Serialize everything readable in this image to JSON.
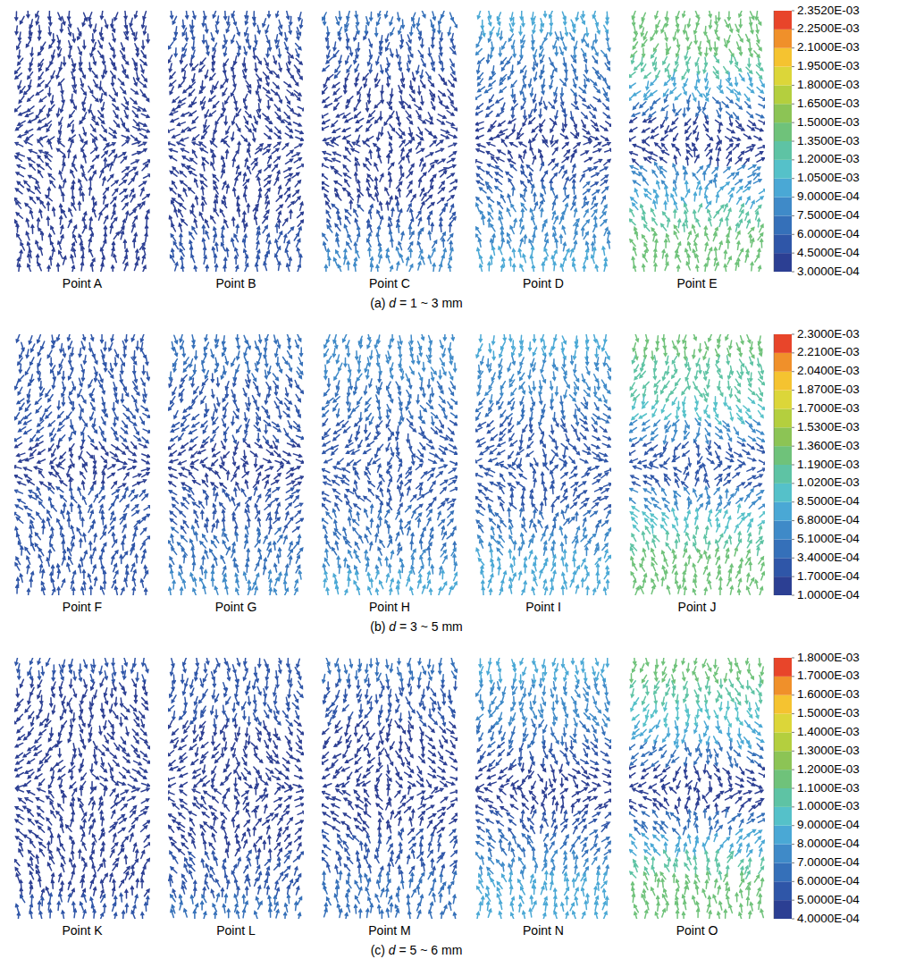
{
  "chart_data": [
    {
      "type": "vector_field",
      "caption": "(a) d = 1 ~ 3 mm",
      "colorbar": {
        "range": [
          0.0003,
          0.002352
        ],
        "ticks": [
          {
            "value": 0.0003,
            "label": "3.0000E-04"
          },
          {
            "value": 0.00045,
            "label": "4.5000E-04"
          },
          {
            "value": 0.0006,
            "label": "6.0000E-04"
          },
          {
            "value": 0.00075,
            "label": "7.5000E-04"
          },
          {
            "value": 0.0009,
            "label": "9.0000E-04"
          },
          {
            "value": 0.00105,
            "label": "1.0500E-03"
          },
          {
            "value": 0.0012,
            "label": "1.2000E-03"
          },
          {
            "value": 0.00135,
            "label": "1.3500E-03"
          },
          {
            "value": 0.0015,
            "label": "1.5000E-03"
          },
          {
            "value": 0.00165,
            "label": "1.6500E-03"
          },
          {
            "value": 0.0018,
            "label": "1.8000E-03"
          },
          {
            "value": 0.00195,
            "label": "1.9500E-03"
          },
          {
            "value": 0.0021,
            "label": "2.1000E-03"
          },
          {
            "value": 0.00225,
            "label": "2.2500E-03"
          },
          {
            "value": 0.002352,
            "label": "2.3520E-03"
          }
        ],
        "colors": [
          "#2c3f93",
          "#2f56a8",
          "#3570b9",
          "#3f8ac8",
          "#4aa8d5",
          "#55c1c9",
          "#5ec3a4",
          "#6fc27a",
          "#8cc455",
          "#b4cf3e",
          "#dcd639",
          "#f5c330",
          "#f0902a",
          "#e8452a"
        ]
      },
      "panels": [
        {
          "label": "Point A",
          "values": [
            0.0004,
            0.00038,
            0.00036,
            0.00034,
            0.00032,
            0.00031,
            0.00031,
            0.00032,
            0.00034,
            0.00036,
            0.00038,
            0.00042
          ]
        },
        {
          "label": "Point B",
          "values": [
            0.0005,
            0.00046,
            0.00042,
            0.00038,
            0.00034,
            0.00032,
            0.00032,
            0.00034,
            0.00038,
            0.00043,
            0.0005,
            0.00058
          ]
        },
        {
          "label": "Point C",
          "values": [
            0.00065,
            0.00058,
            0.0005,
            0.00043,
            0.00036,
            0.00032,
            0.00032,
            0.00036,
            0.00044,
            0.00053,
            0.00064,
            0.00076
          ]
        },
        {
          "label": "Point D",
          "values": [
            0.00095,
            0.00086,
            0.00074,
            0.0006,
            0.00046,
            0.00034,
            0.00034,
            0.00046,
            0.00062,
            0.00076,
            0.00088,
            0.00098
          ]
        },
        {
          "label": "Point E",
          "values": [
            0.00145,
            0.00138,
            0.00122,
            0.001,
            0.00074,
            0.00042,
            0.00042,
            0.00076,
            0.00102,
            0.00124,
            0.0014,
            0.00148
          ]
        }
      ]
    },
    {
      "type": "vector_field",
      "caption": "(b) d = 3 ~ 5 mm",
      "colorbar": {
        "range": [
          0.0001,
          0.0023
        ],
        "ticks": [
          {
            "value": 0.0001,
            "label": "1.0000E-04"
          },
          {
            "value": 0.00017,
            "label": "1.7000E-04"
          },
          {
            "value": 0.00034,
            "label": "3.4000E-04"
          },
          {
            "value": 0.00051,
            "label": "5.1000E-04"
          },
          {
            "value": 0.00068,
            "label": "6.8000E-04"
          },
          {
            "value": 0.00085,
            "label": "8.5000E-04"
          },
          {
            "value": 0.00102,
            "label": "1.0200E-03"
          },
          {
            "value": 0.00119,
            "label": "1.1900E-03"
          },
          {
            "value": 0.00136,
            "label": "1.3600E-03"
          },
          {
            "value": 0.00153,
            "label": "1.5300E-03"
          },
          {
            "value": 0.0017,
            "label": "1.7000E-03"
          },
          {
            "value": 0.00187,
            "label": "1.8700E-03"
          },
          {
            "value": 0.00204,
            "label": "2.0400E-03"
          },
          {
            "value": 0.00221,
            "label": "2.2100E-03"
          },
          {
            "value": 0.0023,
            "label": "2.3000E-03"
          }
        ],
        "colors": [
          "#2c3f93",
          "#2f56a8",
          "#3570b9",
          "#3f8ac8",
          "#4aa8d5",
          "#55c1c9",
          "#5ec3a4",
          "#6fc27a",
          "#8cc455",
          "#b4cf3e",
          "#dcd639",
          "#f5c330",
          "#f0902a",
          "#e8452a"
        ]
      },
      "panels": [
        {
          "label": "Point F",
          "values": [
            0.0003,
            0.00027,
            0.00024,
            0.00021,
            0.00018,
            0.00015,
            0.00015,
            0.00018,
            0.00021,
            0.00024,
            0.00028,
            0.00032
          ]
        },
        {
          "label": "Point G",
          "values": [
            0.00038,
            0.00034,
            0.0003,
            0.00026,
            0.00021,
            0.00016,
            0.00016,
            0.00021,
            0.00027,
            0.00034,
            0.00042,
            0.00052
          ]
        },
        {
          "label": "Point H",
          "values": [
            0.00062,
            0.00054,
            0.00046,
            0.00036,
            0.00026,
            0.00018,
            0.00018,
            0.00027,
            0.00038,
            0.0005,
            0.00062,
            0.00072
          ]
        },
        {
          "label": "Point I",
          "values": [
            0.00072,
            0.00064,
            0.00054,
            0.00042,
            0.0003,
            0.00019,
            0.00019,
            0.00031,
            0.00044,
            0.00056,
            0.00068,
            0.00076
          ]
        },
        {
          "label": "Point J",
          "values": [
            0.00124,
            0.00118,
            0.00104,
            0.00086,
            0.00058,
            0.0003,
            0.0003,
            0.0006,
            0.00088,
            0.00108,
            0.00122,
            0.00128
          ]
        }
      ]
    },
    {
      "type": "vector_field",
      "caption": "(c) d = 5 ~ 6 mm",
      "colorbar": {
        "range": [
          0.0004,
          0.0018
        ],
        "ticks": [
          {
            "value": 0.0004,
            "label": "4.0000E-04"
          },
          {
            "value": 0.0005,
            "label": "5.0000E-04"
          },
          {
            "value": 0.0006,
            "label": "6.0000E-04"
          },
          {
            "value": 0.0007,
            "label": "7.0000E-04"
          },
          {
            "value": 0.0008,
            "label": "8.0000E-04"
          },
          {
            "value": 0.0009,
            "label": "9.0000E-04"
          },
          {
            "value": 0.001,
            "label": "1.0000E-03"
          },
          {
            "value": 0.0011,
            "label": "1.1000E-03"
          },
          {
            "value": 0.0012,
            "label": "1.2000E-03"
          },
          {
            "value": 0.0013,
            "label": "1.3000E-03"
          },
          {
            "value": 0.0014,
            "label": "1.4000E-03"
          },
          {
            "value": 0.0015,
            "label": "1.5000E-03"
          },
          {
            "value": 0.0016,
            "label": "1.6000E-03"
          },
          {
            "value": 0.0017,
            "label": "1.7000E-03"
          },
          {
            "value": 0.0018,
            "label": "1.8000E-03"
          }
        ],
        "colors": [
          "#2c3f93",
          "#2f56a8",
          "#3570b9",
          "#3f8ac8",
          "#4aa8d5",
          "#55c1c9",
          "#5ec3a4",
          "#6fc27a",
          "#8cc455",
          "#b4cf3e",
          "#dcd639",
          "#f5c330",
          "#f0902a",
          "#e8452a"
        ]
      },
      "panels": [
        {
          "label": "Point K",
          "values": [
            0.0005,
            0.00048,
            0.00046,
            0.00044,
            0.00042,
            0.00041,
            0.00041,
            0.00042,
            0.00044,
            0.00046,
            0.00049,
            0.00052
          ]
        },
        {
          "label": "Point L",
          "values": [
            0.00056,
            0.00053,
            0.0005,
            0.00047,
            0.00044,
            0.00042,
            0.00042,
            0.00045,
            0.00049,
            0.00053,
            0.00058,
            0.00064
          ]
        },
        {
          "label": "Point M",
          "values": [
            0.00062,
            0.00058,
            0.00053,
            0.00049,
            0.00045,
            0.00042,
            0.00042,
            0.00046,
            0.00051,
            0.00056,
            0.00062,
            0.00068
          ]
        },
        {
          "label": "Point N",
          "values": [
            0.00084,
            0.00078,
            0.0007,
            0.0006,
            0.0005,
            0.00043,
            0.00043,
            0.00052,
            0.00062,
            0.00072,
            0.0008,
            0.00086
          ]
        },
        {
          "label": "Point O",
          "values": [
            0.00114,
            0.00108,
            0.00098,
            0.00084,
            0.00066,
            0.00046,
            0.00046,
            0.00068,
            0.00086,
            0.001,
            0.0011,
            0.00116
          ]
        }
      ]
    }
  ]
}
